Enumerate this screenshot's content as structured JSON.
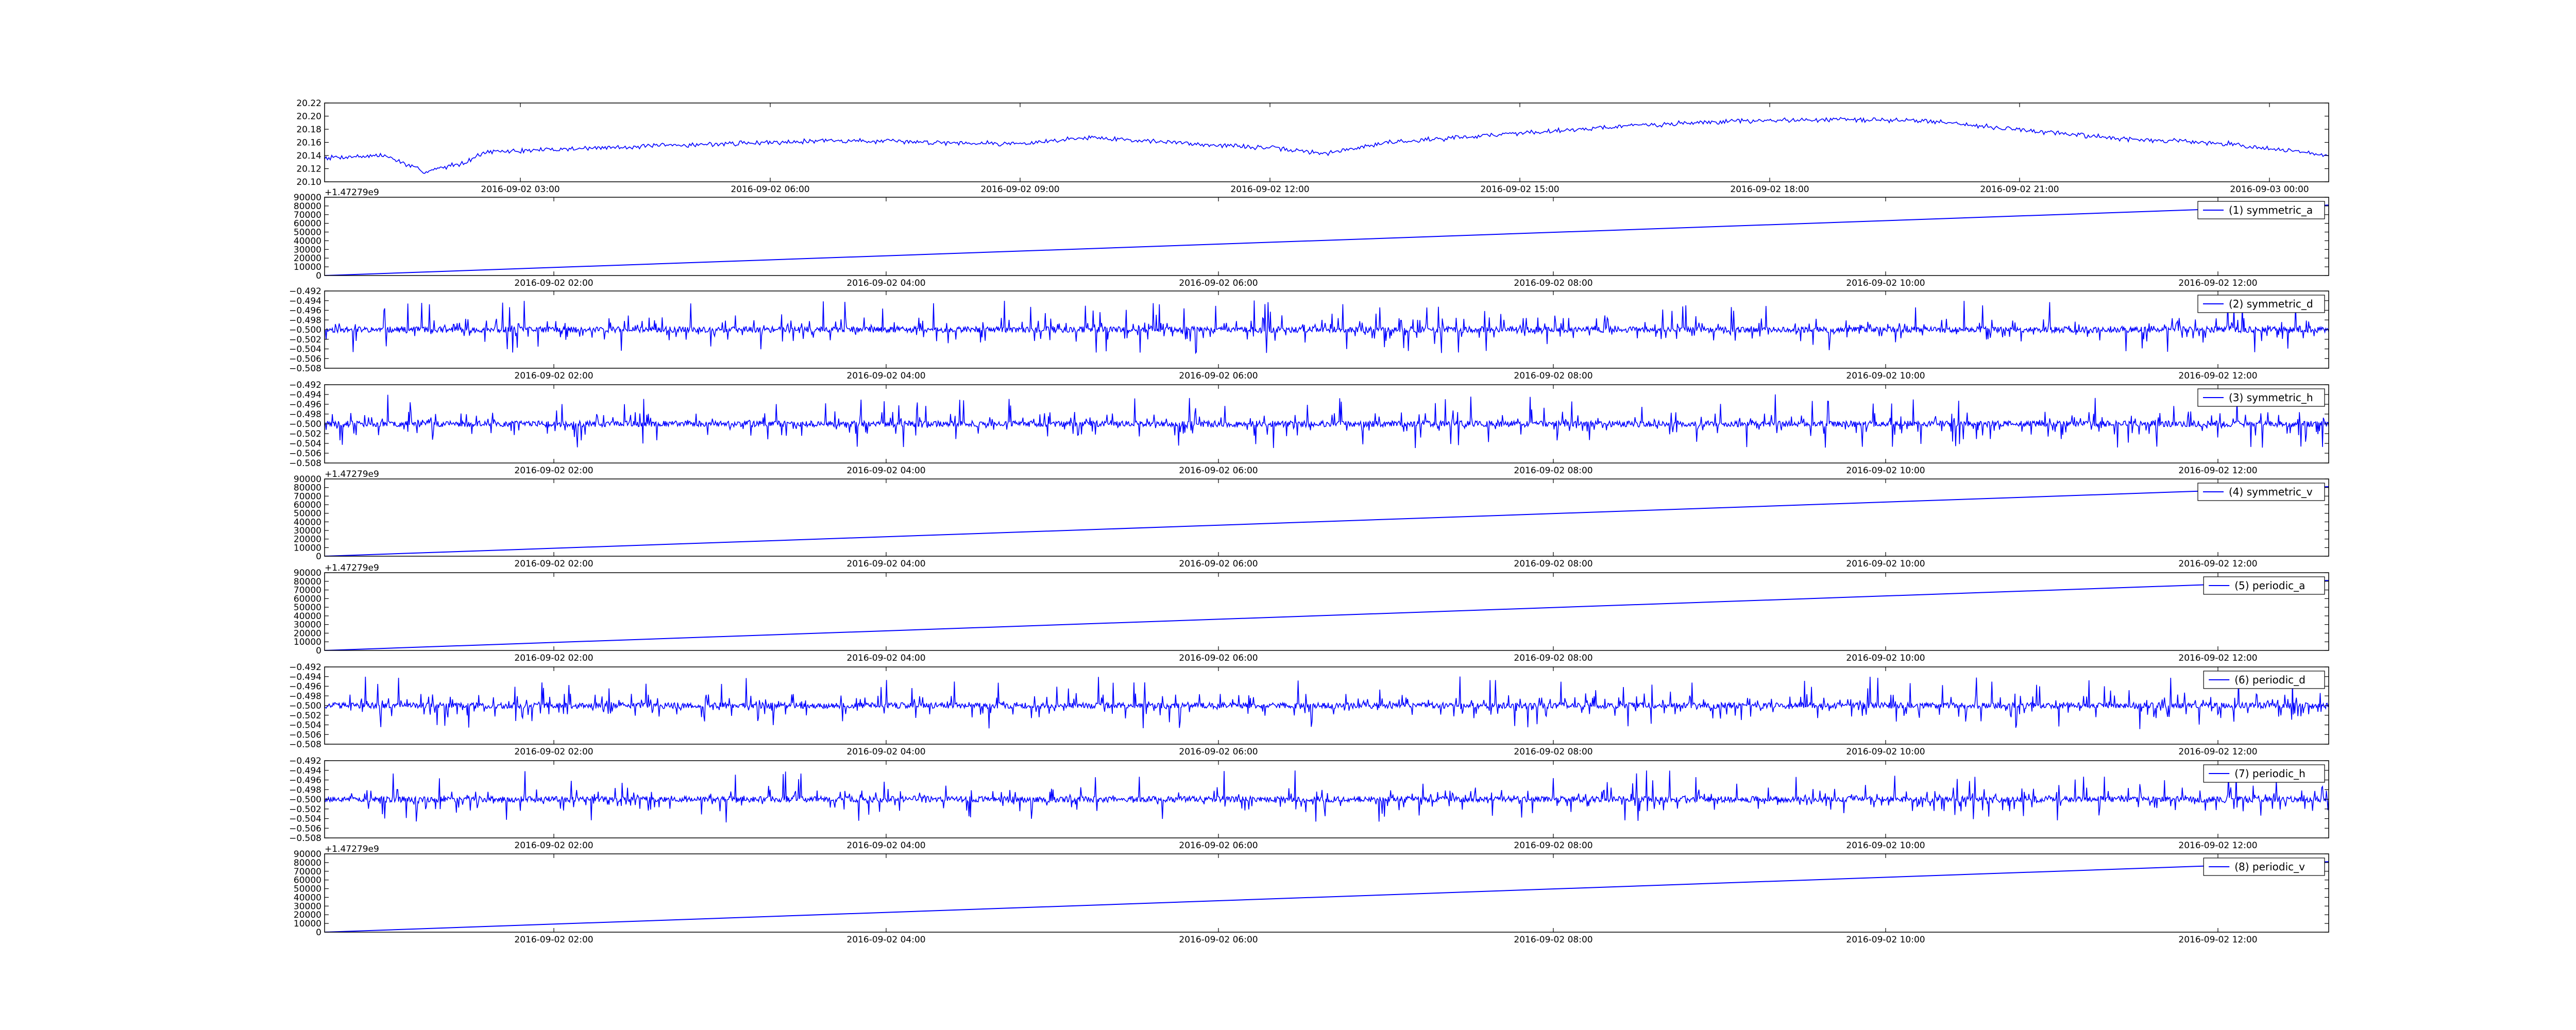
{
  "colors": {
    "line": "#0000ff",
    "axes": "#000000",
    "background": "#ffffff"
  },
  "chart_data": [
    {
      "type": "line",
      "x_ticks": [
        "2016-09-02 03:00",
        "2016-09-02 06:00",
        "2016-09-02 09:00",
        "2016-09-02 12:00",
        "2016-09-02 15:00",
        "2016-09-02 18:00",
        "2016-09-02 21:00",
        "2016-09-03 00:00"
      ],
      "y_ticks": [
        "20.10",
        "20.12",
        "20.14",
        "20.16",
        "20.18",
        "20.20",
        "20.22"
      ],
      "ylim": [
        20.1,
        20.22
      ],
      "x_range": [
        "2016-09-02 00:00",
        "2016-09-03 00:10"
      ],
      "x_offset_label": "",
      "legend": "",
      "series": [
        {
          "kind": "noisy-drift",
          "anchors": [
            [
              0,
              20.137
            ],
            [
              0.03,
              20.14
            ],
            [
              0.05,
              20.115
            ],
            [
              0.07,
              20.13
            ],
            [
              0.08,
              20.145
            ],
            [
              0.12,
              20.15
            ],
            [
              0.2,
              20.158
            ],
            [
              0.25,
              20.163
            ],
            [
              0.35,
              20.158
            ],
            [
              0.38,
              20.168
            ],
            [
              0.45,
              20.155
            ],
            [
              0.47,
              20.152
            ],
            [
              0.5,
              20.143
            ],
            [
              0.53,
              20.16
            ],
            [
              0.6,
              20.175
            ],
            [
              0.65,
              20.185
            ],
            [
              0.7,
              20.192
            ],
            [
              0.75,
              20.195
            ],
            [
              0.8,
              20.193
            ],
            [
              0.85,
              20.178
            ],
            [
              0.9,
              20.165
            ],
            [
              0.95,
              20.158
            ],
            [
              1.0,
              20.14
            ]
          ],
          "noise": 0.006
        }
      ]
    },
    {
      "type": "line",
      "x_ticks": [
        "2016-09-02 02:00",
        "2016-09-02 04:00",
        "2016-09-02 06:00",
        "2016-09-02 08:00",
        "2016-09-02 10:00",
        "2016-09-02 12:00"
      ],
      "y_ticks": [
        "0",
        "10000",
        "20000",
        "30000",
        "40000",
        "50000",
        "60000",
        "70000",
        "80000",
        "90000"
      ],
      "ylim": [
        0,
        90000
      ],
      "x_offset_label": "+1.47279e9",
      "legend": "(1) symmetric_a",
      "series": [
        {
          "kind": "linear",
          "y_start": 0,
          "y_end": 81000
        }
      ]
    },
    {
      "type": "line",
      "x_ticks": [
        "2016-09-02 02:00",
        "2016-09-02 04:00",
        "2016-09-02 06:00",
        "2016-09-02 08:00",
        "2016-09-02 10:00",
        "2016-09-02 12:00"
      ],
      "y_ticks": [
        "−0.508",
        "−0.506",
        "−0.504",
        "−0.502",
        "−0.500",
        "−0.498",
        "−0.496",
        "−0.494",
        "−0.492"
      ],
      "ylim": [
        -0.508,
        -0.492
      ],
      "x_offset_label": "",
      "legend": "(2) symmetric_d",
      "series": [
        {
          "kind": "spiky",
          "center": -0.5,
          "seed": 11
        }
      ]
    },
    {
      "type": "line",
      "x_ticks": [
        "2016-09-02 02:00",
        "2016-09-02 04:00",
        "2016-09-02 06:00",
        "2016-09-02 08:00",
        "2016-09-02 10:00",
        "2016-09-02 12:00"
      ],
      "y_ticks": [
        "−0.508",
        "−0.506",
        "−0.504",
        "−0.502",
        "−0.500",
        "−0.498",
        "−0.496",
        "−0.494",
        "−0.492"
      ],
      "ylim": [
        -0.508,
        -0.492
      ],
      "x_offset_label": "",
      "legend": "(3) symmetric_h",
      "series": [
        {
          "kind": "spiky",
          "center": -0.5,
          "seed": 23
        }
      ]
    },
    {
      "type": "line",
      "x_ticks": [
        "2016-09-02 02:00",
        "2016-09-02 04:00",
        "2016-09-02 06:00",
        "2016-09-02 08:00",
        "2016-09-02 10:00",
        "2016-09-02 12:00"
      ],
      "y_ticks": [
        "0",
        "10000",
        "20000",
        "30000",
        "40000",
        "50000",
        "60000",
        "70000",
        "80000",
        "90000"
      ],
      "ylim": [
        0,
        90000
      ],
      "x_offset_label": "+1.47279e9",
      "legend": "(4) symmetric_v",
      "series": [
        {
          "kind": "linear",
          "y_start": 0,
          "y_end": 81000
        }
      ]
    },
    {
      "type": "line",
      "x_ticks": [
        "2016-09-02 02:00",
        "2016-09-02 04:00",
        "2016-09-02 06:00",
        "2016-09-02 08:00",
        "2016-09-02 10:00",
        "2016-09-02 12:00"
      ],
      "y_ticks": [
        "0",
        "10000",
        "20000",
        "30000",
        "40000",
        "50000",
        "60000",
        "70000",
        "80000",
        "90000"
      ],
      "ylim": [
        0,
        90000
      ],
      "x_offset_label": "+1.47279e9",
      "legend": "(5) periodic_a",
      "series": [
        {
          "kind": "linear",
          "y_start": 0,
          "y_end": 81000
        }
      ]
    },
    {
      "type": "line",
      "x_ticks": [
        "2016-09-02 02:00",
        "2016-09-02 04:00",
        "2016-09-02 06:00",
        "2016-09-02 08:00",
        "2016-09-02 10:00",
        "2016-09-02 12:00"
      ],
      "y_ticks": [
        "−0.508",
        "−0.506",
        "−0.504",
        "−0.502",
        "−0.500",
        "−0.498",
        "−0.496",
        "−0.494",
        "−0.492"
      ],
      "ylim": [
        -0.508,
        -0.492
      ],
      "x_offset_label": "",
      "legend": "(6) periodic_d",
      "series": [
        {
          "kind": "spiky",
          "center": -0.5,
          "seed": 37
        }
      ]
    },
    {
      "type": "line",
      "x_ticks": [
        "2016-09-02 02:00",
        "2016-09-02 04:00",
        "2016-09-02 06:00",
        "2016-09-02 08:00",
        "2016-09-02 10:00",
        "2016-09-02 12:00"
      ],
      "y_ticks": [
        "−0.508",
        "−0.506",
        "−0.504",
        "−0.502",
        "−0.500",
        "−0.498",
        "−0.496",
        "−0.494",
        "−0.492"
      ],
      "ylim": [
        -0.508,
        -0.492
      ],
      "x_offset_label": "",
      "legend": "(7) periodic_h",
      "series": [
        {
          "kind": "spiky",
          "center": -0.5,
          "seed": 53
        }
      ]
    },
    {
      "type": "line",
      "x_ticks": [
        "2016-09-02 02:00",
        "2016-09-02 04:00",
        "2016-09-02 06:00",
        "2016-09-02 08:00",
        "2016-09-02 10:00",
        "2016-09-02 12:00"
      ],
      "y_ticks": [
        "0",
        "10000",
        "20000",
        "30000",
        "40000",
        "50000",
        "60000",
        "70000",
        "80000",
        "90000"
      ],
      "ylim": [
        0,
        90000
      ],
      "x_offset_label": "+1.47279e9",
      "legend": "(8) periodic_v",
      "series": [
        {
          "kind": "linear",
          "y_start": 0,
          "y_end": 81000
        }
      ]
    }
  ]
}
